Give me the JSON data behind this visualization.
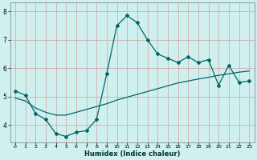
{
  "title": "",
  "xlabel": "Humidex (Indice chaleur)",
  "bg_color": "#cff0ee",
  "grid_color": "#d4a0a0",
  "line_color": "#006666",
  "xlim": [
    -0.5,
    23.5
  ],
  "ylim": [
    3.4,
    8.3
  ],
  "yticks": [
    4,
    5,
    6,
    7,
    8
  ],
  "xticks": [
    0,
    1,
    2,
    3,
    4,
    5,
    6,
    7,
    8,
    9,
    10,
    11,
    12,
    13,
    14,
    15,
    16,
    17,
    18,
    19,
    20,
    21,
    22,
    23
  ],
  "curve1_x": [
    0,
    1,
    2,
    3,
    4,
    5,
    6,
    7,
    8,
    9,
    10,
    11,
    12,
    13,
    14,
    15,
    16,
    17,
    18,
    19,
    20,
    21,
    22,
    23
  ],
  "curve1_y": [
    5.2,
    5.05,
    4.4,
    4.2,
    3.7,
    3.6,
    3.75,
    3.8,
    4.2,
    5.8,
    7.5,
    7.85,
    7.6,
    7.0,
    6.5,
    6.35,
    6.2,
    6.4,
    6.2,
    6.3,
    5.4,
    6.1,
    5.5,
    5.55
  ],
  "curve2_x": [
    0,
    1,
    2,
    3,
    4,
    5,
    6,
    7,
    8,
    9,
    10,
    11,
    12,
    13,
    14,
    15,
    16,
    17,
    18,
    19,
    20,
    21,
    22,
    23
  ],
  "curve2_y": [
    4.95,
    4.85,
    4.6,
    4.45,
    4.35,
    4.35,
    4.45,
    4.55,
    4.65,
    4.75,
    4.88,
    4.98,
    5.08,
    5.18,
    5.28,
    5.38,
    5.48,
    5.55,
    5.62,
    5.68,
    5.75,
    5.8,
    5.86,
    5.9
  ]
}
